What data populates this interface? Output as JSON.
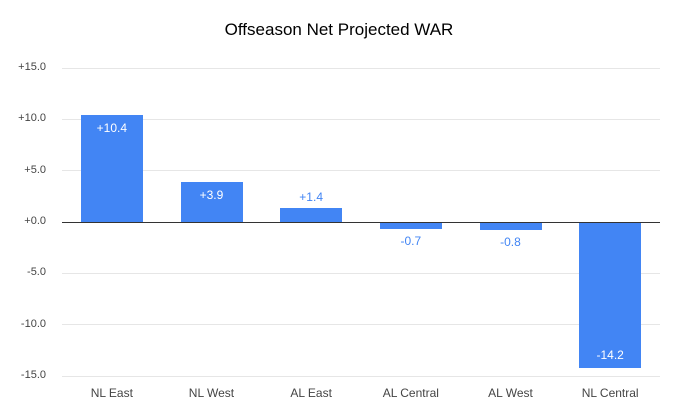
{
  "title": "Offseason Net Projected WAR",
  "chart_data": {
    "type": "bar",
    "title": "Offseason Net Projected WAR",
    "categories": [
      "NL East",
      "NL West",
      "AL East",
      "AL Central",
      "AL West",
      "NL Central"
    ],
    "values": [
      10.4,
      3.9,
      1.4,
      -0.7,
      -0.8,
      -14.2
    ],
    "value_labels": [
      "+10.4",
      "+3.9",
      "+1.4",
      "-0.7",
      "-0.8",
      "-14.2"
    ],
    "xlabel": "",
    "ylabel": "",
    "ylim": [
      -15,
      15
    ],
    "y_ticks": [
      15,
      10,
      5,
      0,
      -5,
      -10,
      -15
    ],
    "y_tick_labels": [
      "+15.0",
      "+10.0",
      "+5.0",
      "+0.0",
      "-5.0",
      "-10.0",
      "-15.0"
    ],
    "grid": "horizontal",
    "legend": "none",
    "bar_color": "#4285f4",
    "label_inside_color": "#ffffff",
    "label_outside_color": "#4285f4",
    "axis_text_color": "#444444",
    "gridline_color": "#e6e6e6",
    "zero_line_color": "#333333",
    "background": "#ffffff"
  }
}
